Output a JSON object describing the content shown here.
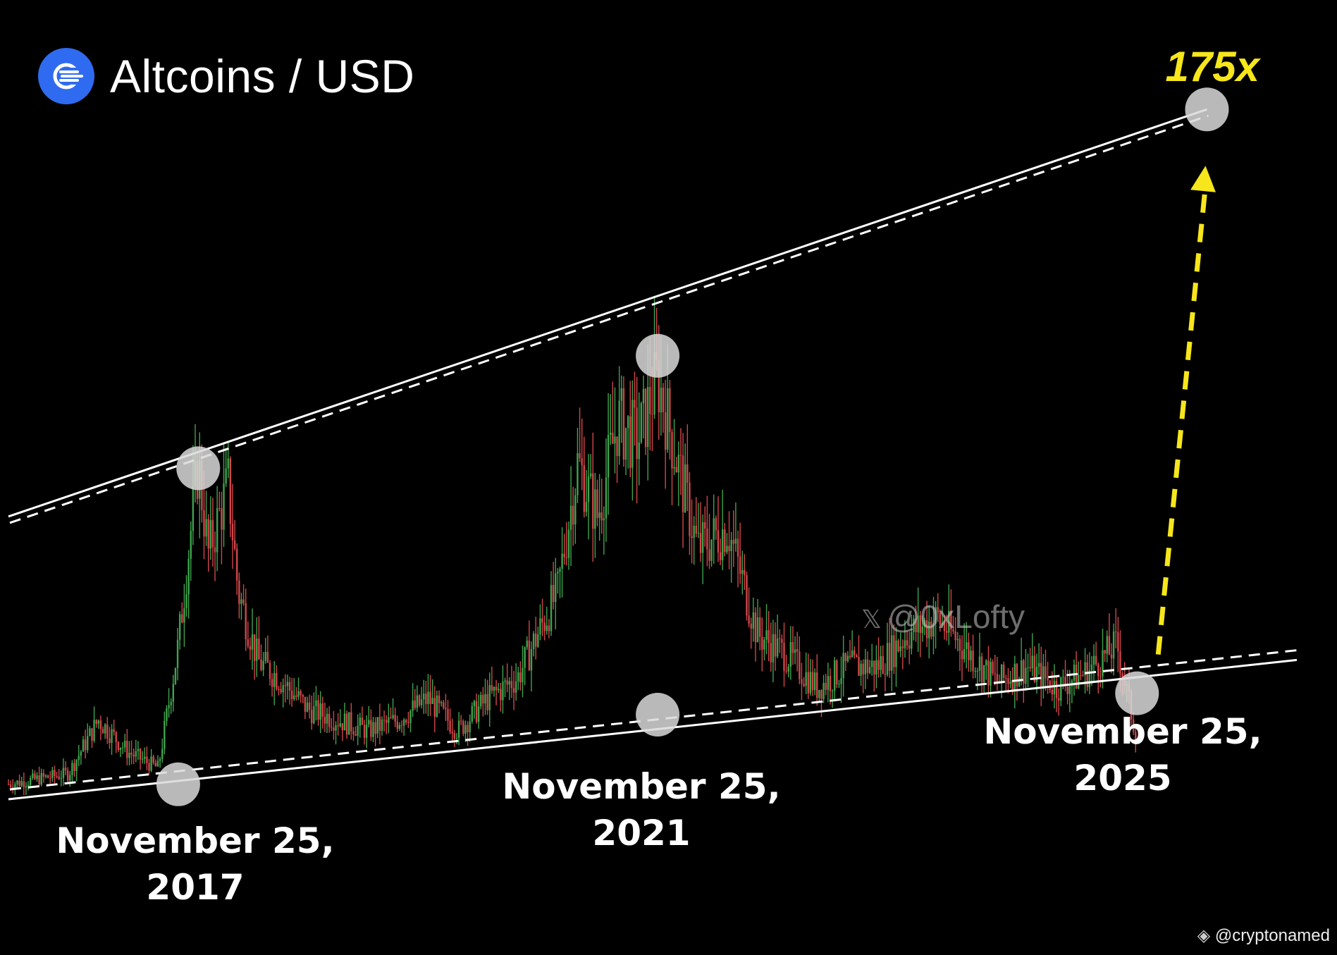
{
  "header": {
    "title": "Altcoins / USD",
    "logo_icon": "altcoin-logo-icon",
    "logo_color": "#2f6bf0"
  },
  "annotations": {
    "target_multiplier": "175x",
    "date_2017": [
      "November 25,",
      "2017"
    ],
    "date_2021": [
      "November 25,",
      "2021"
    ],
    "date_2025": [
      "November 25,",
      "2025"
    ],
    "watermark": "@0xLofty",
    "watermark_icon": "x-logo-icon",
    "credit": "@cryptonamed",
    "credit_icon": "binance-icon"
  },
  "colors": {
    "background": "#000000",
    "up_candle": "#3fa34d",
    "down_candle": "#d0474a",
    "trendline": "#ffffff",
    "arrow": "#f6e61b",
    "marker": "#d9d9d9"
  },
  "chart_data": {
    "type": "line",
    "title": "Altcoins / USD",
    "xlabel": "",
    "ylabel": "",
    "x_range": [
      "2016-06",
      "2027-03"
    ],
    "y_range": [
      0,
      100
    ],
    "y_scale": "relative (no y axis printed)",
    "grid": false,
    "legend": "none",
    "x": [
      "2016-06",
      "2016-09",
      "2016-12",
      "2017-03",
      "2017-06",
      "2017-09",
      "2017-11",
      "2018-01",
      "2018-02",
      "2018-04",
      "2018-05",
      "2018-07",
      "2018-09",
      "2018-12",
      "2019-03",
      "2019-06",
      "2019-09",
      "2019-12",
      "2020-03",
      "2020-06",
      "2020-09",
      "2020-11",
      "2021-01",
      "2021-03",
      "2021-05",
      "2021-07",
      "2021-09",
      "2021-11",
      "2022-01",
      "2022-03",
      "2022-06",
      "2022-09",
      "2022-12",
      "2023-03",
      "2023-06",
      "2023-09",
      "2023-12",
      "2024-03",
      "2024-06",
      "2024-09",
      "2024-12",
      "2025-03",
      "2025-06",
      "2025-09",
      "2025-11"
    ],
    "series": [
      {
        "values": [
          2,
          3,
          4,
          14,
          8,
          5,
          28,
          62,
          45,
          58,
          38,
          25,
          22,
          16,
          14,
          12,
          14,
          18,
          12,
          18,
          22,
          30,
          38,
          62,
          52,
          70,
          66,
          78,
          62,
          46,
          50,
          30,
          26,
          20,
          24,
          24,
          30,
          33,
          27,
          21,
          24,
          20,
          23,
          28,
          10
        ]
      }
    ],
    "trendlines": [
      {
        "kind": "upper resistance",
        "x": [
          "2016-06",
          "2026-06"
        ],
        "y": [
          52,
          128
        ]
      },
      {
        "kind": "lower support",
        "x": [
          "2016-06",
          "2027-03"
        ],
        "y": [
          0,
          26
        ]
      }
    ],
    "touch_points": [
      {
        "x": "2017-11",
        "y": 2,
        "label": "November 25, 2017"
      },
      {
        "x": "2018-01",
        "y": 61
      },
      {
        "x": "2021-11",
        "y": 15,
        "label": "November 25, 2021"
      },
      {
        "x": "2021-11",
        "y": 82
      },
      {
        "x": "2025-11",
        "y": 19,
        "label": "November 25, 2025"
      },
      {
        "x": "2026-06",
        "y": 128,
        "label": "175x"
      }
    ]
  }
}
